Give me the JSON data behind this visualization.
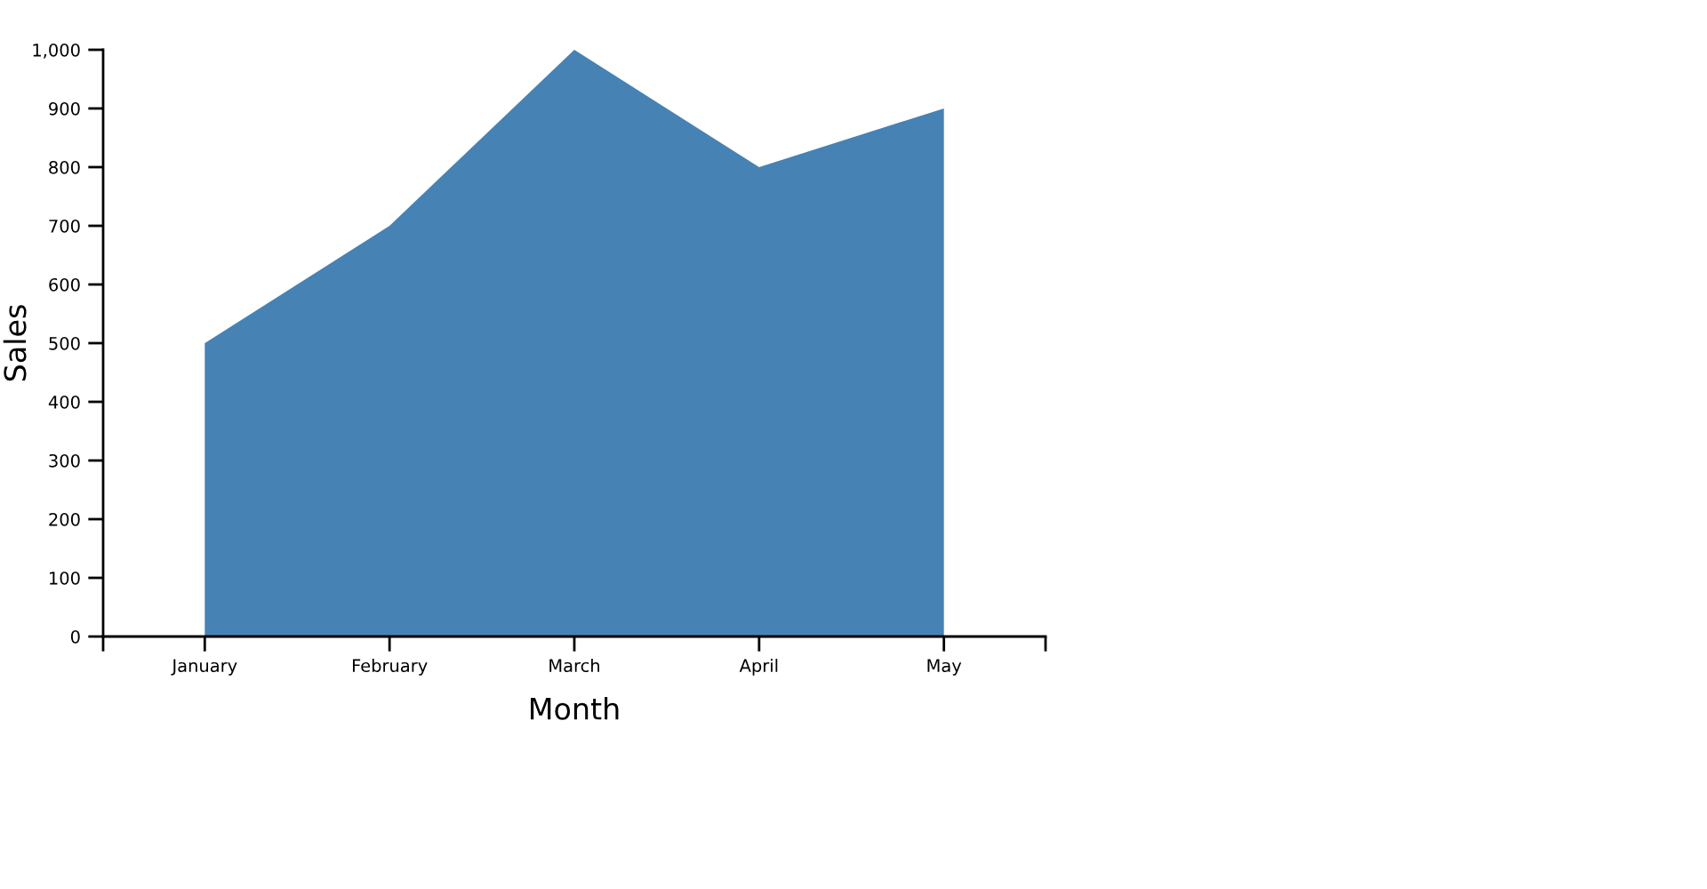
{
  "chart_data": {
    "type": "area",
    "xlabel": "Month",
    "ylabel": "Sales",
    "categories": [
      "January",
      "February",
      "March",
      "April",
      "May"
    ],
    "series": [
      {
        "color": "#4682b4",
        "values": [
          500,
          700,
          1000,
          800,
          900
        ]
      }
    ],
    "ylim": [
      0,
      1000
    ],
    "yticks": [
      0,
      100,
      200,
      300,
      400,
      500,
      600,
      700,
      800,
      900,
      {
        "value": 1000,
        "label": "1,000"
      }
    ],
    "grid": false
  }
}
